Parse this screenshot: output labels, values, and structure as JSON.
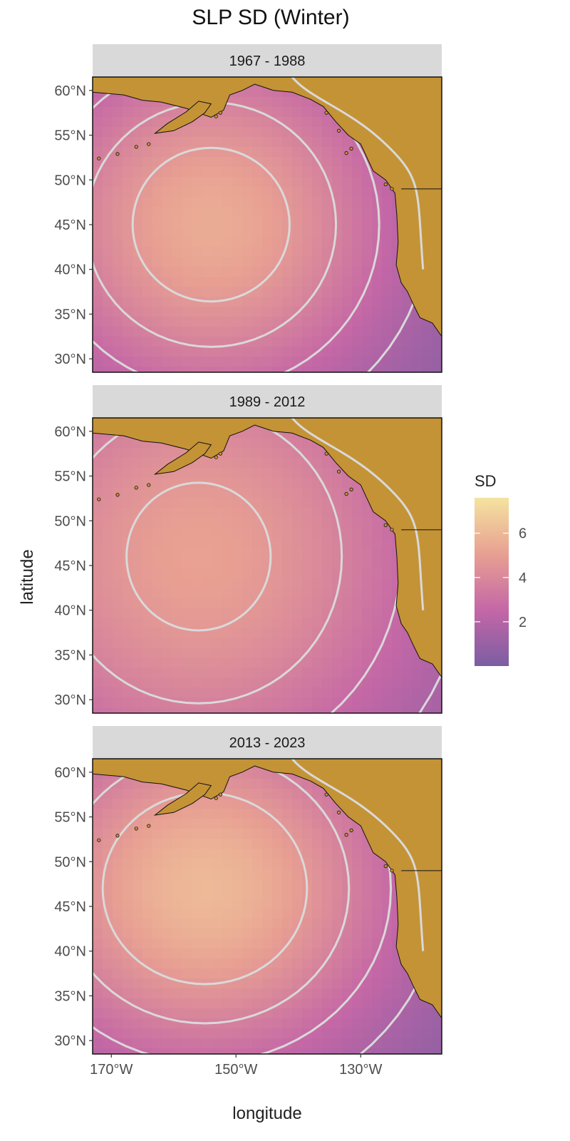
{
  "title": "SLP SD (Winter)",
  "xlabel": "longitude",
  "ylabel": "latitude",
  "legend": {
    "title": "SD",
    "ticks": [
      2,
      4,
      6
    ],
    "range": [
      0,
      7.6
    ],
    "colors": [
      "#7b5da3",
      "#c467a6",
      "#e8a092",
      "#f5e3a0"
    ]
  },
  "map_data": {
    "type": "heatmap-map",
    "x_extent": [
      -173,
      -117
    ],
    "y_extent": [
      28.5,
      61.5
    ],
    "x_ticks": [
      -170,
      -150,
      -130
    ],
    "x_tick_labels": [
      "170°W",
      "150°W",
      "130°W"
    ],
    "y_ticks": [
      30,
      35,
      40,
      45,
      50,
      55,
      60
    ],
    "y_tick_labels": [
      "30°N",
      "35°N",
      "40°N",
      "45°N",
      "50°N",
      "55°N",
      "60°N"
    ],
    "land_color": "#c49336",
    "contour_color": "#d9d9d9",
    "panels": [
      {
        "label": "1967 - 1988",
        "center": [
          -154,
          45
        ],
        "peak": 5.3,
        "spread": [
          22,
          15
        ]
      },
      {
        "label": "1989 - 2012",
        "center": [
          -156,
          46
        ],
        "peak": 4.9,
        "spread": [
          28,
          20
        ]
      },
      {
        "label": "2013 - 2023",
        "center": [
          -155,
          47
        ],
        "peak": 5.8,
        "spread": [
          23,
          15
        ]
      }
    ]
  }
}
